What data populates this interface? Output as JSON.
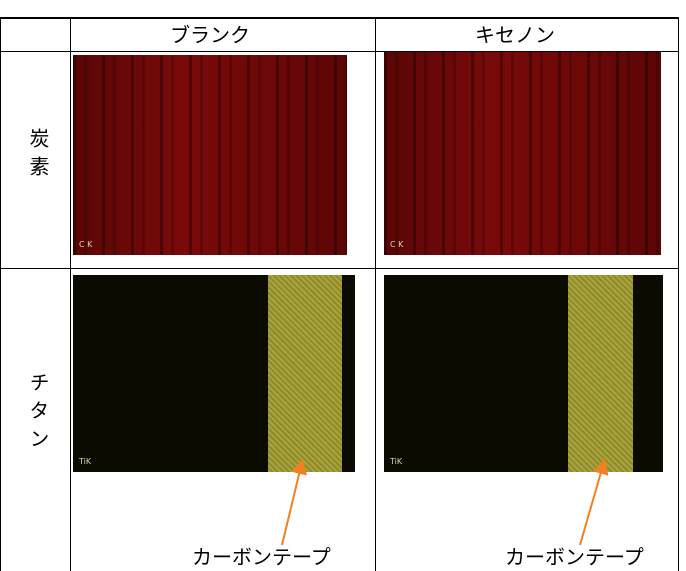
{
  "table": {
    "columns": [
      "ブランク",
      "キセノン"
    ],
    "rows": [
      {
        "label": "炭素",
        "image_labels": [
          "C K",
          "C K"
        ]
      },
      {
        "label": "チタン",
        "image_labels": [
          "TiK",
          "TiK"
        ],
        "annotations": [
          "カーボンテープ",
          "カーボンテープ"
        ]
      }
    ]
  }
}
